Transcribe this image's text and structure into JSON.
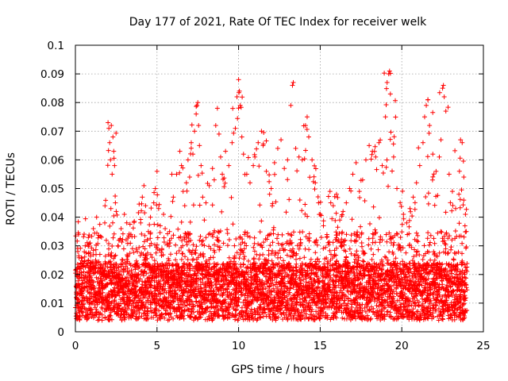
{
  "chart_data": {
    "type": "scatter",
    "title": "Day 177 of 2021, Rate Of TEC Index for receiver welk",
    "xlabel": "GPS time / hours",
    "ylabel": "ROTI / TECUs",
    "xlim": [
      0,
      25
    ],
    "ylim": [
      0,
      0.1
    ],
    "grid": true,
    "marker": "+",
    "x_ticks": [
      0,
      5,
      10,
      15,
      20,
      25
    ],
    "x_tick_labels": [
      "0",
      "5",
      "10",
      "15",
      "20",
      "25"
    ],
    "y_ticks": [
      0,
      0.01,
      0.02,
      0.03,
      0.04,
      0.05,
      0.06,
      0.07,
      0.08,
      0.09,
      0.1
    ],
    "y_tick_labels": [
      "0",
      "0.01",
      "0.02",
      "0.03",
      "0.04",
      "0.05",
      "0.06",
      "0.07",
      "0.08",
      "0.09",
      "0.1"
    ],
    "series": [
      {
        "name": "ROTI",
        "color": "#ff0000",
        "points": [
          [
            0.05,
            0.012
          ],
          [
            0.15,
            0.028
          ],
          [
            0.2,
            0.034
          ],
          [
            0.3,
            0.022
          ],
          [
            0.4,
            0.015
          ],
          [
            0.5,
            0.019
          ],
          [
            0.6,
            0.03
          ],
          [
            0.7,
            0.011
          ],
          [
            0.8,
            0.025
          ],
          [
            0.9,
            0.031
          ],
          [
            1.0,
            0.018
          ],
          [
            1.1,
            0.036
          ],
          [
            1.2,
            0.022
          ],
          [
            1.3,
            0.04
          ],
          [
            1.4,
            0.014
          ],
          [
            1.5,
            0.027
          ],
          [
            1.6,
            0.033
          ],
          [
            1.7,
            0.02
          ],
          [
            1.8,
            0.038
          ],
          [
            1.9,
            0.011
          ],
          [
            2.0,
            0.073
          ],
          [
            2.05,
            0.071
          ],
          [
            2.1,
            0.066
          ],
          [
            2.15,
            0.06
          ],
          [
            2.2,
            0.072
          ],
          [
            2.25,
            0.055
          ],
          [
            2.3,
            0.068
          ],
          [
            2.35,
            0.063
          ],
          [
            2.4,
            0.058
          ],
          [
            2.45,
            0.045
          ],
          [
            2.5,
            0.042
          ],
          [
            2.6,
            0.03
          ],
          [
            2.7,
            0.018
          ],
          [
            2.8,
            0.036
          ],
          [
            2.9,
            0.025
          ],
          [
            3.0,
            0.041
          ],
          [
            3.2,
            0.021
          ],
          [
            3.4,
            0.034
          ],
          [
            3.6,
            0.016
          ],
          [
            3.8,
            0.028
          ],
          [
            4.0,
            0.038
          ],
          [
            4.1,
            0.047
          ],
          [
            4.2,
            0.051
          ],
          [
            4.3,
            0.044
          ],
          [
            4.4,
            0.032
          ],
          [
            4.5,
            0.019
          ],
          [
            4.6,
            0.04
          ],
          [
            4.7,
            0.026
          ],
          [
            4.8,
            0.045
          ],
          [
            4.9,
            0.05
          ],
          [
            5.0,
            0.056
          ],
          [
            5.1,
            0.043
          ],
          [
            5.2,
            0.037
          ],
          [
            5.3,
            0.029
          ],
          [
            5.4,
            0.041
          ],
          [
            5.5,
            0.036
          ],
          [
            5.6,
            0.024
          ],
          [
            5.8,
            0.031
          ],
          [
            6.0,
            0.047
          ],
          [
            6.2,
            0.055
          ],
          [
            6.4,
            0.063
          ],
          [
            6.5,
            0.058
          ],
          [
            6.6,
            0.049
          ],
          [
            6.7,
            0.044
          ],
          [
            6.8,
            0.052
          ],
          [
            6.9,
            0.06
          ],
          [
            7.0,
            0.054
          ],
          [
            7.1,
            0.066
          ],
          [
            7.2,
            0.062
          ],
          [
            7.3,
            0.07
          ],
          [
            7.4,
            0.076
          ],
          [
            7.45,
            0.079
          ],
          [
            7.5,
            0.08
          ],
          [
            7.55,
            0.072
          ],
          [
            7.6,
            0.065
          ],
          [
            7.7,
            0.058
          ],
          [
            7.8,
            0.047
          ],
          [
            7.9,
            0.039
          ],
          [
            8.0,
            0.045
          ],
          [
            8.2,
            0.051
          ],
          [
            8.4,
            0.057
          ],
          [
            8.6,
            0.072
          ],
          [
            8.7,
            0.078
          ],
          [
            8.8,
            0.069
          ],
          [
            8.9,
            0.061
          ],
          [
            9.0,
            0.055
          ],
          [
            9.2,
            0.063
          ],
          [
            9.4,
            0.058
          ],
          [
            9.6,
            0.066
          ],
          [
            9.8,
            0.071
          ],
          [
            9.9,
            0.082
          ],
          [
            10.0,
            0.088
          ],
          [
            10.05,
            0.084
          ],
          [
            10.1,
            0.079
          ],
          [
            10.2,
            0.068
          ],
          [
            10.3,
            0.062
          ],
          [
            10.5,
            0.055
          ],
          [
            10.7,
            0.052
          ],
          [
            10.9,
            0.058
          ],
          [
            11.0,
            0.061
          ],
          [
            11.2,
            0.066
          ],
          [
            11.4,
            0.07
          ],
          [
            11.5,
            0.065
          ],
          [
            11.7,
            0.056
          ],
          [
            11.9,
            0.048
          ],
          [
            12.0,
            0.05
          ],
          [
            12.2,
            0.059
          ],
          [
            12.4,
            0.064
          ],
          [
            12.6,
            0.067
          ],
          [
            12.8,
            0.057
          ],
          [
            13.0,
            0.06
          ],
          [
            13.2,
            0.079
          ],
          [
            13.3,
            0.086
          ],
          [
            13.35,
            0.087
          ],
          [
            13.5,
            0.064
          ],
          [
            13.7,
            0.061
          ],
          [
            13.9,
            0.06
          ],
          [
            14.1,
            0.072
          ],
          [
            14.2,
            0.075
          ],
          [
            14.3,
            0.068
          ],
          [
            14.5,
            0.06
          ],
          [
            14.7,
            0.052
          ],
          [
            14.9,
            0.045
          ],
          [
            15.0,
            0.041
          ],
          [
            15.2,
            0.037
          ],
          [
            15.4,
            0.033
          ],
          [
            15.6,
            0.049
          ],
          [
            15.8,
            0.044
          ],
          [
            16.0,
            0.048
          ],
          [
            16.2,
            0.039
          ],
          [
            16.4,
            0.042
          ],
          [
            16.6,
            0.045
          ],
          [
            16.8,
            0.05
          ],
          [
            17.0,
            0.055
          ],
          [
            17.2,
            0.059
          ],
          [
            17.4,
            0.049
          ],
          [
            17.6,
            0.053
          ],
          [
            17.8,
            0.06
          ],
          [
            18.0,
            0.065
          ],
          [
            18.2,
            0.063
          ],
          [
            18.4,
            0.061
          ],
          [
            18.6,
            0.066
          ],
          [
            18.8,
            0.058
          ],
          [
            19.0,
            0.075
          ],
          [
            19.1,
            0.087
          ],
          [
            19.2,
            0.09
          ],
          [
            19.25,
            0.091
          ],
          [
            19.3,
            0.083
          ],
          [
            19.5,
            0.061
          ],
          [
            19.7,
            0.05
          ],
          [
            19.9,
            0.045
          ],
          [
            20.1,
            0.041
          ],
          [
            20.3,
            0.038
          ],
          [
            20.5,
            0.043
          ],
          [
            20.7,
            0.047
          ],
          [
            20.9,
            0.052
          ],
          [
            21.1,
            0.058
          ],
          [
            21.3,
            0.066
          ],
          [
            21.4,
            0.075
          ],
          [
            21.5,
            0.079
          ],
          [
            21.6,
            0.081
          ],
          [
            21.7,
            0.072
          ],
          [
            21.9,
            0.062
          ],
          [
            22.1,
            0.056
          ],
          [
            22.3,
            0.061
          ],
          [
            22.4,
            0.067
          ],
          [
            22.5,
            0.085
          ],
          [
            22.55,
            0.086
          ],
          [
            22.6,
            0.082
          ],
          [
            22.7,
            0.077
          ],
          [
            22.9,
            0.055
          ],
          [
            23.1,
            0.049
          ],
          [
            23.3,
            0.043
          ],
          [
            23.5,
            0.048
          ],
          [
            23.6,
            0.067
          ],
          [
            23.7,
            0.066
          ],
          [
            23.8,
            0.054
          ],
          [
            23.9,
            0.041
          ],
          [
            23.95,
            0.035
          ]
        ]
      }
    ]
  }
}
